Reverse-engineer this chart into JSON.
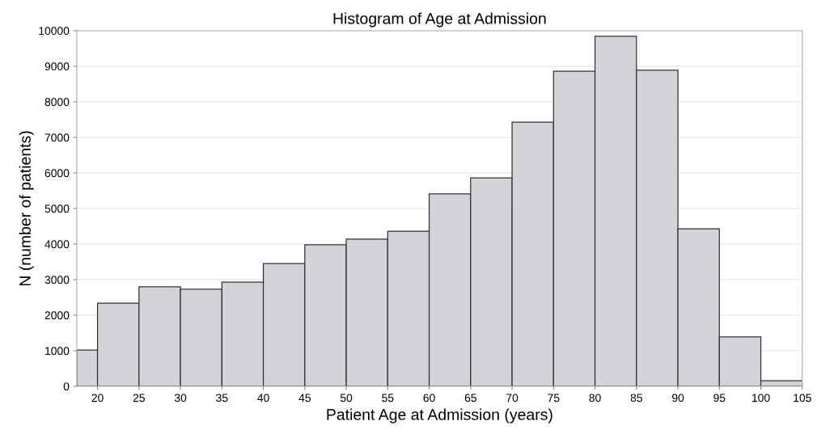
{
  "chart_data": {
    "type": "histogram",
    "title": "Histogram of Age at Admission",
    "xlabel": "Patient Age at Admission (years)",
    "ylabel": "N (number of patients)",
    "bins": [
      17.5,
      20,
      25,
      30,
      35,
      40,
      45,
      50,
      55,
      60,
      65,
      70,
      75,
      80,
      85,
      90,
      95,
      100,
      105
    ],
    "values": [
      1020,
      2340,
      2800,
      2730,
      2930,
      3450,
      3980,
      4140,
      4360,
      5410,
      5860,
      7430,
      8860,
      9840,
      8890,
      4430,
      1390,
      160
    ],
    "color": "#d3d4d8",
    "xlim": [
      17.5,
      105
    ],
    "xticks": [
      20,
      25,
      30,
      35,
      40,
      45,
      50,
      55,
      60,
      65,
      70,
      75,
      80,
      85,
      90,
      95,
      100,
      105
    ],
    "ylim": [
      0,
      10000
    ],
    "yticks": [
      0,
      1000,
      2000,
      3000,
      4000,
      5000,
      6000,
      7000,
      8000,
      9000,
      10000
    ],
    "grid": "y"
  }
}
